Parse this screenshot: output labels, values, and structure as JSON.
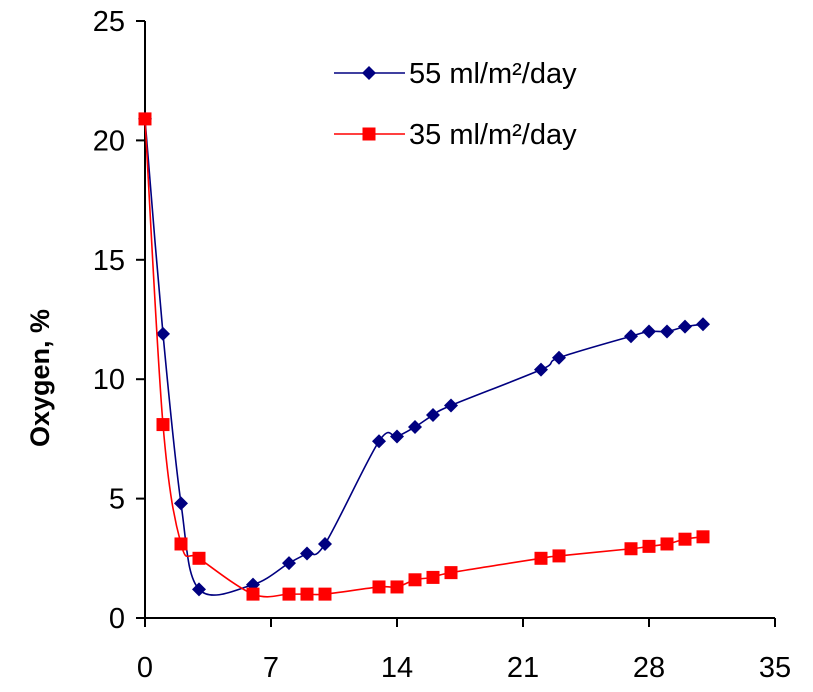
{
  "chart_data": {
    "type": "line",
    "title": "",
    "xlabel": "",
    "ylabel": "Oxygen, %",
    "xlim": [
      0,
      35
    ],
    "ylim": [
      0,
      25
    ],
    "x_ticks": [
      0,
      7,
      14,
      21,
      28,
      35
    ],
    "y_ticks": [
      0,
      5,
      10,
      15,
      20,
      25
    ],
    "grid": false,
    "legend_position": "top-right",
    "series": [
      {
        "name": "55 ml/m²/day",
        "color": "#000080",
        "marker": "diamond",
        "x": [
          0,
          1,
          2,
          3,
          6,
          8,
          9,
          10,
          13,
          14,
          15,
          16,
          17,
          22,
          23,
          27,
          28,
          29,
          30,
          31
        ],
        "y": [
          20.9,
          11.9,
          4.8,
          1.2,
          1.4,
          2.3,
          2.7,
          3.1,
          7.4,
          7.6,
          8.0,
          8.5,
          8.9,
          10.4,
          10.9,
          11.8,
          12.0,
          12.0,
          12.2,
          12.3
        ]
      },
      {
        "name": "35 ml/m²/day",
        "color": "#ff0000",
        "marker": "square",
        "x": [
          0,
          1,
          2,
          3,
          6,
          8,
          9,
          10,
          13,
          14,
          15,
          16,
          17,
          22,
          23,
          27,
          28,
          29,
          30,
          31
        ],
        "y": [
          20.9,
          8.1,
          3.1,
          2.5,
          1.0,
          1.0,
          1.0,
          1.0,
          1.3,
          1.3,
          1.6,
          1.7,
          1.9,
          2.5,
          2.6,
          2.9,
          3.0,
          3.1,
          3.3,
          3.4
        ]
      }
    ]
  }
}
